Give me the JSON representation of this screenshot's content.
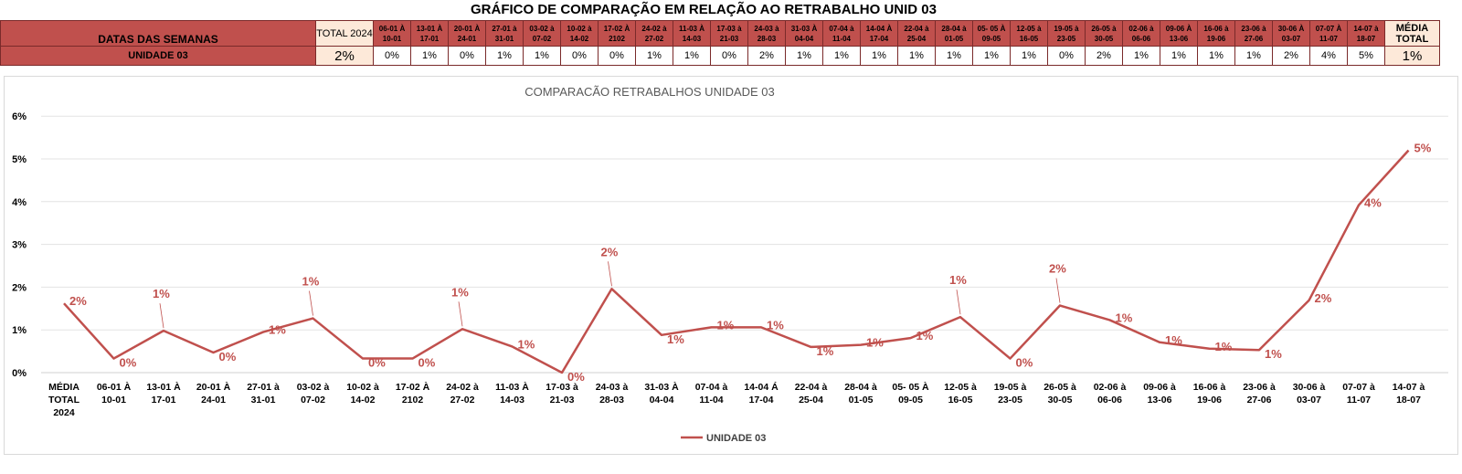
{
  "sheet": {
    "title": "GRÁFICO DE COMPARAÇÃO EM RELAÇÃO AO RETRABALHO UNID 03",
    "row_header_label": "DATAS DAS SEMANAS",
    "row_unit_label": "UNIDADE 03",
    "total_header": "TOTAL 2024",
    "total_value": "2%",
    "avg_header": "MÉDIA TOTAL",
    "avg_value": "1%",
    "week_headers": [
      "06-01 À 10-01",
      "13-01 À 17-01",
      "20-01 À 24-01",
      "27-01 à 31-01",
      "03-02 à 07-02",
      "10-02 à 14-02",
      "17-02 À 2102",
      "24-02 à 27-02",
      "11-03 À 14-03",
      "17-03 à 21-03",
      "24-03 à 28-03",
      "31-03 À 04-04",
      "07-04 à 11-04",
      "14-04 À 17-04",
      "22-04 à 25-04",
      "28-04 à 01-05",
      "05- 05 À 09-05",
      "12-05 à 16-05",
      "19-05 à 23-05",
      "26-05 à 30-05",
      "02-06 à 06-06",
      "09-06 À 13-06",
      "16-06 à 19-06",
      "23-06 à 27-06",
      "30-06 À 03-07",
      "07-07 À 11-07",
      "14-07 à 18-07"
    ],
    "week_values": [
      "0%",
      "1%",
      "0%",
      "1%",
      "1%",
      "0%",
      "0%",
      "1%",
      "1%",
      "0%",
      "2%",
      "1%",
      "1%",
      "1%",
      "1%",
      "1%",
      "1%",
      "1%",
      "0%",
      "2%",
      "1%",
      "1%",
      "1%",
      "1%",
      "2%",
      "4%",
      "5%"
    ],
    "colors": {
      "header_red": "#c0504d",
      "header_peach": "#fde9d9",
      "series": "#c0504d"
    }
  },
  "chart_data": {
    "type": "line",
    "title": "COMPARACÃO RETRABALHOS UNIDADE 03",
    "categories": [
      [
        "MÉDIA",
        "TOTAL",
        "2024"
      ],
      [
        "06-01 À",
        "10-01"
      ],
      [
        "13-01 À",
        "17-01"
      ],
      [
        "20-01 À",
        "24-01"
      ],
      [
        "27-01 à",
        "31-01"
      ],
      [
        "03-02 à",
        "07-02"
      ],
      [
        "10-02 à",
        "14-02"
      ],
      [
        "17-02 À",
        "2102"
      ],
      [
        "24-02 à",
        "27-02"
      ],
      [
        "11-03 À",
        "14-03"
      ],
      [
        "17-03 à",
        "21-03"
      ],
      [
        "24-03 à",
        "28-03"
      ],
      [
        "31-03 À",
        "04-04"
      ],
      [
        "07-04 à",
        "11-04"
      ],
      [
        "14-04 Á",
        "17-04"
      ],
      [
        "22-04 à",
        "25-04"
      ],
      [
        "28-04 à",
        "01-05"
      ],
      [
        "05- 05 À",
        "09-05"
      ],
      [
        "12-05 à",
        "16-05"
      ],
      [
        "19-05 à",
        "23-05"
      ],
      [
        "26-05 à",
        "30-05"
      ],
      [
        "02-06 à",
        "06-06"
      ],
      [
        "09-06 à",
        "13-06"
      ],
      [
        "16-06 à",
        "19-06"
      ],
      [
        "23-06 à",
        "27-06"
      ],
      [
        "30-06 à",
        "03-07"
      ],
      [
        "07-07 à",
        "11-07"
      ],
      [
        "14-07 à",
        "18-07"
      ]
    ],
    "series": [
      {
        "name": "UNIDADE 03",
        "color": "#c0504d",
        "values": [
          1.62,
          0.33,
          0.98,
          0.47,
          0.95,
          1.27,
          0.33,
          0.33,
          1.02,
          0.61,
          0.0,
          1.96,
          0.88,
          1.06,
          1.06,
          0.6,
          0.65,
          0.81,
          1.3,
          0.33,
          1.57,
          1.23,
          0.71,
          0.56,
          0.53,
          1.69,
          3.92,
          5.2
        ],
        "labels": [
          "2%",
          "0%",
          "1%",
          "0%",
          "1%",
          "1%",
          "0%",
          "0%",
          "1%",
          "1%",
          "0%",
          "2%",
          "1%",
          "1%",
          "1%",
          "1%",
          "1%",
          "1%",
          "1%",
          "0%",
          "2%",
          "1%",
          "1%",
          "1%",
          "1%",
          "2%",
          "4%",
          "5%"
        ]
      }
    ],
    "y_ticks": [
      "0%",
      "1%",
      "2%",
      "3%",
      "4%",
      "5%",
      "6%"
    ],
    "ylim": [
      0,
      6
    ],
    "grid": true,
    "legend_position": "bottom"
  }
}
